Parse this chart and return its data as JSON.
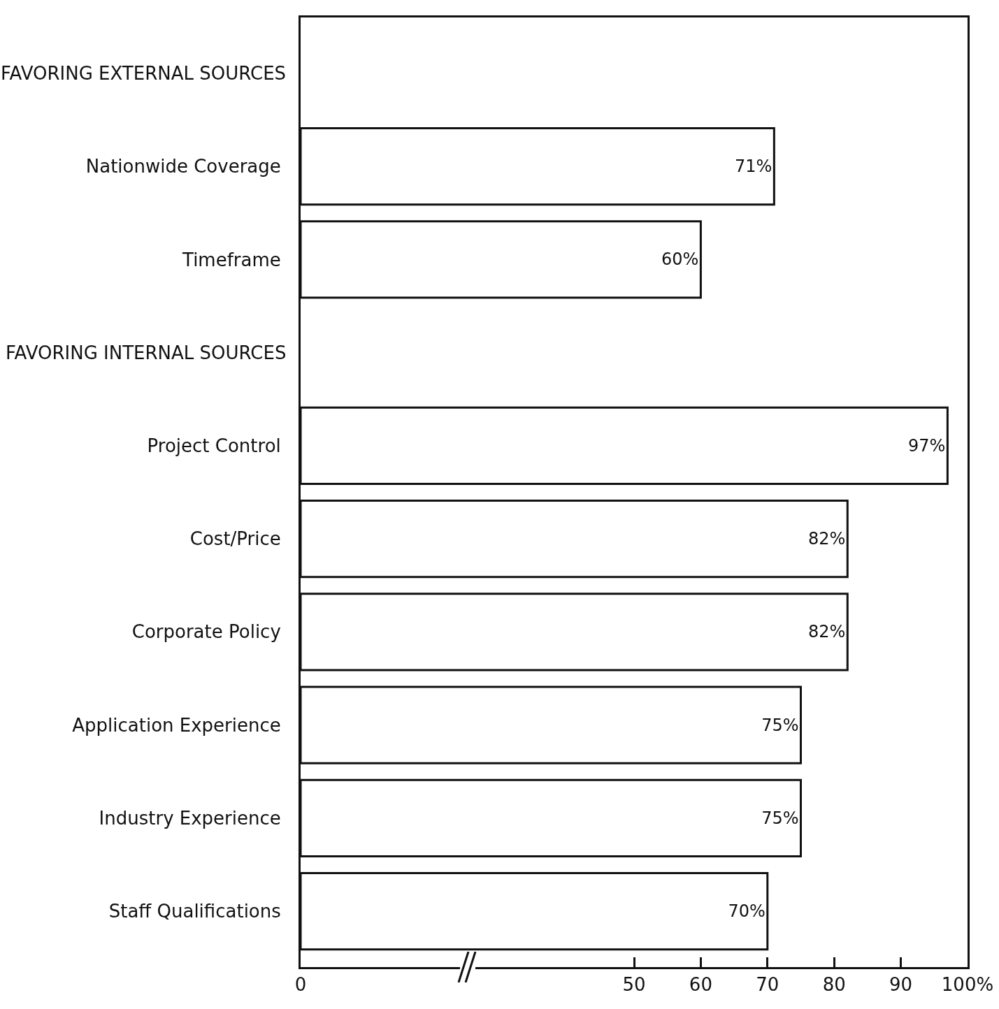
{
  "chart_data": {
    "type": "bar",
    "orientation": "horizontal",
    "categories": [
      null,
      "Nationwide Coverage",
      "Timeframe",
      null,
      "Project Control",
      "Cost/Price",
      "Corporate Policy",
      "Application Experience",
      "Industry Experience",
      "Staff Qualifications"
    ],
    "values": [
      null,
      71,
      60,
      null,
      97,
      82,
      82,
      75,
      75,
      70
    ],
    "value_labels": [
      null,
      "71%",
      "60%",
      null,
      "97%",
      "82%",
      "82%",
      "75%",
      "75%",
      "70%"
    ],
    "color": "#ffffff",
    "xlim": [
      0,
      100
    ],
    "xticks": [
      0,
      50,
      60,
      70,
      80,
      90,
      {
        "value": 100,
        "label": "100%"
      }
    ],
    "annotations": [
      "FAVORING EXTERNAL SOURCES",
      "FAVORING INTERNAL SOURCES"
    ],
    "grid": false
  }
}
